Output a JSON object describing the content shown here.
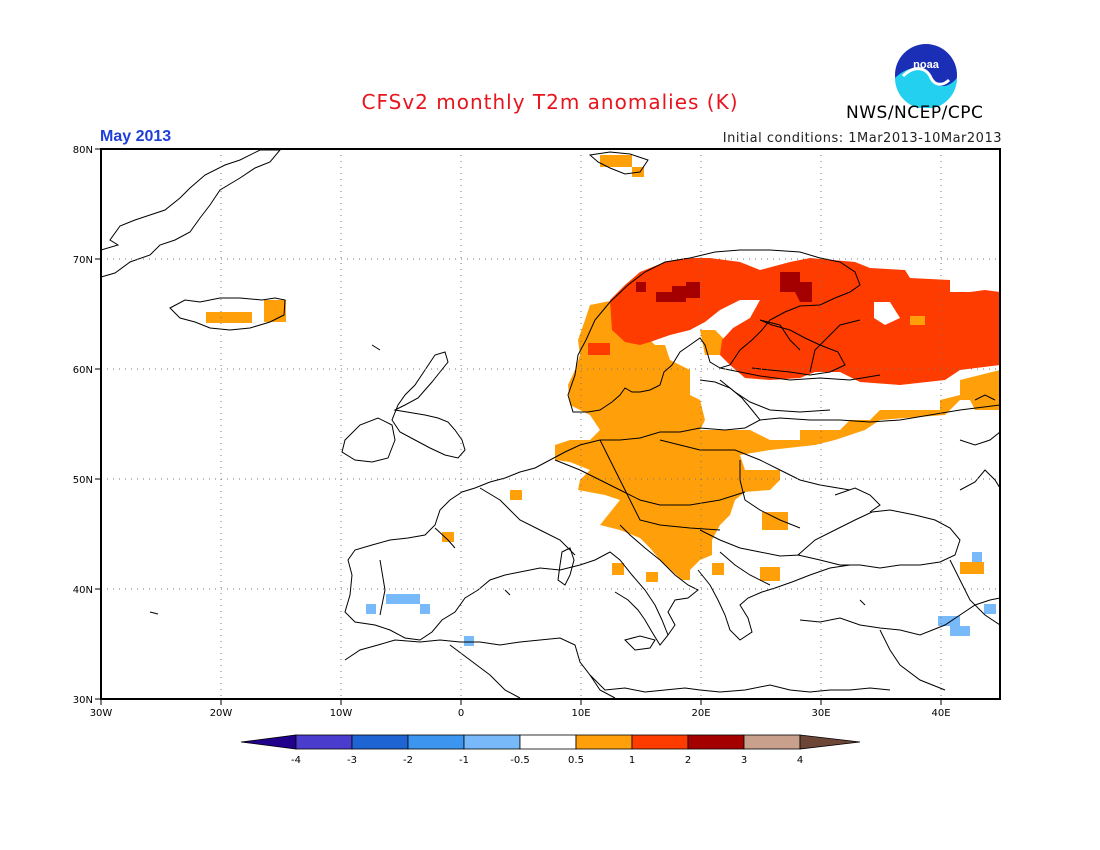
{
  "header": {
    "title": "CFSv2 monthly T2m anomalies (K)",
    "month": "May 2013",
    "initial_conditions": "Initial conditions: 1Mar2013-10Mar2013",
    "agency": "NWS/NCEP/CPC"
  },
  "axes": {
    "lon_ticks": [
      "30W",
      "20W",
      "10W",
      "0",
      "10E",
      "20E",
      "30E",
      "40E"
    ],
    "lat_ticks": [
      "30N",
      "40N",
      "50N",
      "60N",
      "70N",
      "80N"
    ],
    "lon_range": [
      -30,
      45
    ],
    "lat_range": [
      30,
      80
    ],
    "grid": "dotted"
  },
  "colorbar": {
    "labels": [
      "-4",
      "-3",
      "-2",
      "-1",
      "-0.5",
      "0.5",
      "1",
      "2",
      "3",
      "4"
    ],
    "colors": [
      "#21008c",
      "#4a3ccc",
      "#1e64d2",
      "#3c96f0",
      "#78b9fa",
      "#ffffff",
      "#ffa00a",
      "#ff3c00",
      "#a50000",
      "#c8a08c",
      "#6e4637"
    ]
  },
  "anomaly_regions": [
    {
      "category": "0.5 to 1",
      "color": "#ffa00a",
      "area": "Southern Scandinavia, Central Europe, Balkans, Western Russia, Southern Iceland, Svalbard"
    },
    {
      "category": "1 to 2",
      "color": "#ff3c00",
      "area": "Northern Scandinavia, Finland, Northwestern Russia"
    },
    {
      "category": "2 to 3",
      "color": "#a50000",
      "area": "Northern Norway/Sweden, Kola region"
    },
    {
      "category": "-1 to -0.5",
      "color": "#78b9fa",
      "area": "Iberian Peninsula, Turkey, Caucasus"
    }
  ]
}
